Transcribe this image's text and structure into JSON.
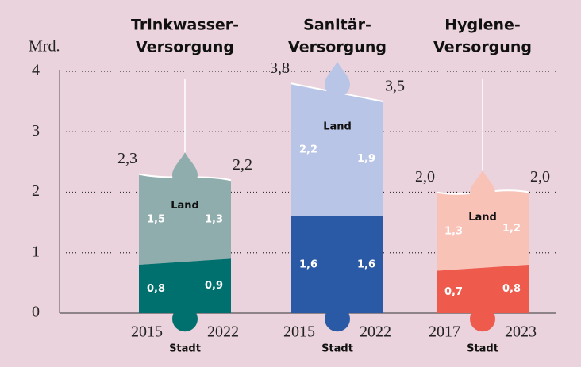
{
  "chart_data": {
    "type": "bar",
    "y_label": "Mrd.",
    "ylim": [
      0,
      4
    ],
    "yticks": [
      0,
      1,
      2,
      3,
      4
    ],
    "grid": true,
    "groups": [
      {
        "title": [
          "Trinkwasser-",
          "Versorgung"
        ],
        "years": [
          "2015",
          "2022"
        ],
        "totals": [
          2.3,
          2.2
        ],
        "total_labels": [
          "2,3",
          "2,2"
        ],
        "series": [
          {
            "name": "Stadt",
            "color": "#00706e",
            "values": [
              0.8,
              0.9
            ],
            "value_labels": [
              "0,8",
              "0,9"
            ]
          },
          {
            "name": "Land",
            "color": "#8fadad",
            "values": [
              1.5,
              1.3
            ],
            "value_labels": [
              "1,5",
              "1,3"
            ]
          }
        ]
      },
      {
        "title": [
          "Sanitär-",
          "Versorgung"
        ],
        "years": [
          "2015",
          "2022"
        ],
        "totals": [
          3.8,
          3.5
        ],
        "total_labels": [
          "3,8",
          "3,5"
        ],
        "series": [
          {
            "name": "Stadt",
            "color": "#2a5aa6",
            "values": [
              1.6,
              1.6
            ],
            "value_labels": [
              "1,6",
              "1,6"
            ]
          },
          {
            "name": "Land",
            "color": "#b9c5e6",
            "values": [
              2.2,
              1.9
            ],
            "value_labels": [
              "2,2",
              "1,9"
            ]
          }
        ]
      },
      {
        "title": [
          "Hygiene-",
          "Versorgung"
        ],
        "years": [
          "2017",
          "2023"
        ],
        "totals": [
          2.0,
          2.0
        ],
        "total_labels": [
          "2,0",
          "2,0"
        ],
        "series": [
          {
            "name": "Stadt",
            "color": "#ee5a4c",
            "values": [
              0.7,
              0.8
            ],
            "value_labels": [
              "0,7",
              "0,8"
            ]
          },
          {
            "name": "Land",
            "color": "#f8c2b7",
            "values": [
              1.3,
              1.2
            ],
            "value_labels": [
              "1,3",
              "1,2"
            ]
          }
        ]
      }
    ]
  }
}
